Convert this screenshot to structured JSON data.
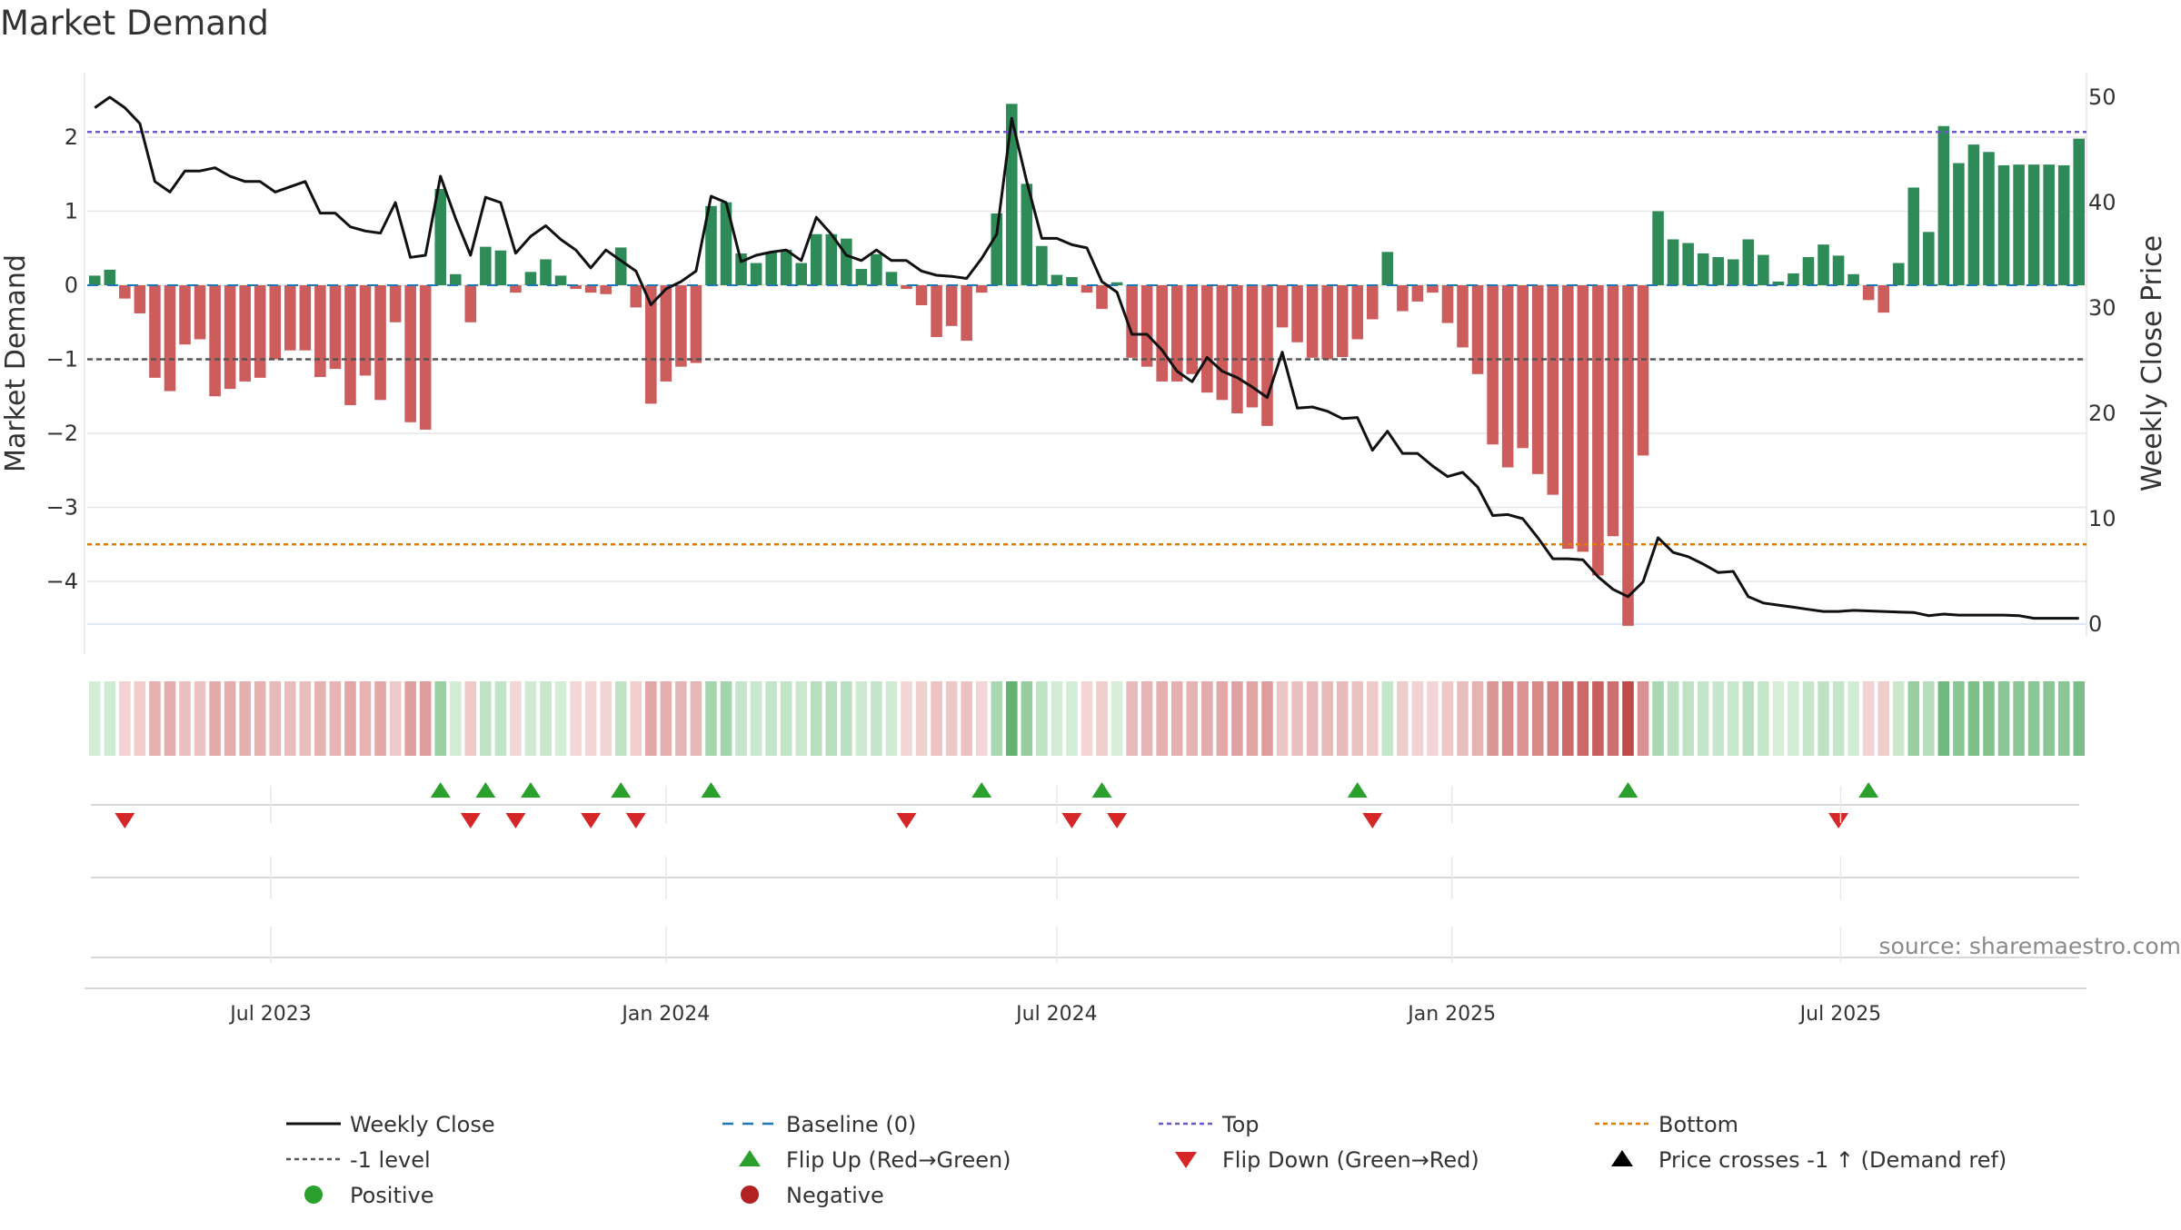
{
  "chart_data": {
    "type": "bar",
    "title": "Market Demand",
    "ylabel_left": "Market Demand",
    "ylabel_right": "Weekly Close Price",
    "ylim_left": [
      -4.7,
      2.7
    ],
    "ylim_right": [
      0,
      50
    ],
    "grid": true,
    "x_start_week": "2023-04-10",
    "x_date_ticks": [
      {
        "label": "Jul 2023",
        "date": "2023-07-01"
      },
      {
        "label": "Jan 2024",
        "date": "2024-01-01"
      },
      {
        "label": "Jul 2024",
        "date": "2024-07-01"
      },
      {
        "label": "Jan 2025",
        "date": "2025-01-01"
      },
      {
        "label": "Jul 2025",
        "date": "2025-07-01"
      }
    ],
    "left_ticks": [
      2,
      1,
      0,
      -1,
      -2,
      -3,
      -4
    ],
    "left_tick_labels": [
      "2",
      "1",
      "0",
      "−1",
      "−2",
      "−3",
      "−4"
    ],
    "right_ticks": [
      50,
      40,
      30,
      20,
      10,
      0
    ],
    "right_tick_labels": [
      "50",
      "40",
      "30",
      "20",
      "10",
      "0"
    ],
    "reference_lines": {
      "top": 2.07,
      "bottom": -3.5,
      "minus_one": -1,
      "baseline": 0
    },
    "demand": [
      0.13,
      0.21,
      -0.18,
      -0.38,
      -1.25,
      -1.43,
      -0.8,
      -0.73,
      -1.5,
      -1.4,
      -1.3,
      -1.25,
      -1.0,
      -0.88,
      -0.88,
      -1.24,
      -1.13,
      -1.62,
      -1.22,
      -1.55,
      -0.5,
      -1.85,
      -1.95,
      1.3,
      0.15,
      -0.5,
      0.52,
      0.47,
      -0.1,
      0.18,
      0.35,
      0.13,
      -0.05,
      -0.1,
      -0.12,
      0.51,
      -0.3,
      -1.6,
      -1.3,
      -1.1,
      -1.05,
      1.07,
      1.12,
      0.43,
      0.3,
      0.45,
      0.48,
      0.3,
      0.69,
      0.69,
      0.63,
      0.22,
      0.42,
      0.18,
      -0.05,
      -0.27,
      -0.7,
      -0.55,
      -0.75,
      -0.1,
      0.97,
      2.45,
      1.37,
      0.53,
      0.14,
      0.11,
      -0.1,
      -0.32,
      0.04,
      -0.98,
      -1.1,
      -1.3,
      -1.3,
      -1.2,
      -1.45,
      -1.55,
      -1.73,
      -1.65,
      -1.9,
      -0.57,
      -0.77,
      -0.98,
      -1.0,
      -0.97,
      -0.73,
      -0.46,
      0.45,
      -0.35,
      -0.22,
      -0.1,
      -0.51,
      -0.84,
      -1.2,
      -2.15,
      -2.46,
      -2.2,
      -2.55,
      -2.83,
      -3.56,
      -3.6,
      -3.92,
      -3.39,
      -4.6,
      -2.3,
      1.0,
      0.62,
      0.57,
      0.43,
      0.38,
      0.35,
      0.62,
      0.41,
      0.05,
      0.16,
      0.38,
      0.55,
      0.4,
      0.15,
      -0.2,
      -0.37,
      0.3,
      1.32,
      0.72,
      2.15,
      1.65,
      1.9,
      1.8,
      1.62,
      1.63,
      1.63,
      1.63,
      1.62,
      1.98
    ],
    "price": [
      49,
      50,
      49,
      47.5,
      42,
      41,
      43,
      43,
      43.3,
      42.5,
      42,
      42,
      41,
      41.5,
      42,
      39,
      39,
      37.7,
      37.3,
      37.1,
      40,
      34.8,
      35,
      42.5,
      38.5,
      35,
      40.5,
      40,
      35.2,
      36.8,
      37.8,
      36.5,
      35.5,
      33.8,
      35.5,
      34.5,
      33.5,
      30.3,
      31.8,
      32.5,
      33.5,
      40.6,
      40,
      34.4,
      35,
      35.3,
      35.5,
      34.5,
      38.6,
      37,
      35,
      34.5,
      35.5,
      34.5,
      34.5,
      33.5,
      33.1,
      33,
      32.8,
      34.7,
      37,
      48,
      42,
      36.6,
      36.6,
      36,
      35.7,
      32.5,
      31.5,
      27.5,
      27.5,
      26,
      24,
      23,
      25.3,
      24,
      23.4,
      22.5,
      21.5,
      25.8,
      20.5,
      20.6,
      20.2,
      19.5,
      19.6,
      16.5,
      18.3,
      16.2,
      16.2,
      15,
      14,
      14.4,
      13,
      10.3,
      10.4,
      10,
      8.2,
      6.2,
      6.2,
      6.1,
      4.5,
      3.3,
      2.6,
      4,
      8.2,
      6.8,
      6.4,
      5.7,
      4.9,
      5,
      2.6,
      2,
      1.8,
      1.6,
      1.4,
      1.2,
      1.2,
      1.3,
      1.25,
      1.2,
      1.15,
      1.1,
      0.8,
      0.95,
      0.85,
      0.85,
      0.85,
      0.85,
      0.8,
      0.55,
      0.55,
      0.55,
      0.55
    ],
    "flip_up_weeks": [
      23,
      26,
      29,
      35,
      41,
      59,
      67,
      84,
      102,
      118
    ],
    "flip_down_weeks": [
      2,
      25,
      28,
      33,
      36,
      54,
      65,
      68,
      85,
      116
    ],
    "source_label": "source: sharemaestro.com",
    "colors": {
      "positive_bar": "#2e8b57",
      "negative_bar": "#cd5c5c",
      "price_line": "#111111",
      "baseline": "#1f77b4",
      "top_line": "#6a5acd",
      "bottom_line": "#e07b00",
      "minus_one_line": "#555555",
      "flip_up": "#2ca02c",
      "flip_down": "#d62728",
      "positive_dot": "#2ca02c",
      "negative_dot": "#b22222"
    },
    "legend": {
      "placement": "bottom",
      "items": [
        {
          "label": "Weekly Close",
          "marker": "solid-line",
          "color": "#111111"
        },
        {
          "label": "Baseline (0)",
          "marker": "dashed-line",
          "color": "#1f77b4"
        },
        {
          "label": "Top",
          "marker": "dotted-line",
          "color": "#6a5acd"
        },
        {
          "label": "Bottom",
          "marker": "dotted-line",
          "color": "#e07b00"
        },
        {
          "label": "-1 level",
          "marker": "dotted-line",
          "color": "#555555"
        },
        {
          "label": "Flip Up (Red→Green)",
          "marker": "triangle-up",
          "color": "#2ca02c"
        },
        {
          "label": "Flip Down (Green→Red)",
          "marker": "triangle-down",
          "color": "#d62728"
        },
        {
          "label": "Price crosses -1 ↑ (Demand ref)",
          "marker": "triangle-up",
          "color": "#000000"
        },
        {
          "label": "Positive",
          "marker": "dot",
          "color": "#2ca02c"
        },
        {
          "label": "Negative",
          "marker": "dot",
          "color": "#b22222"
        }
      ]
    }
  }
}
